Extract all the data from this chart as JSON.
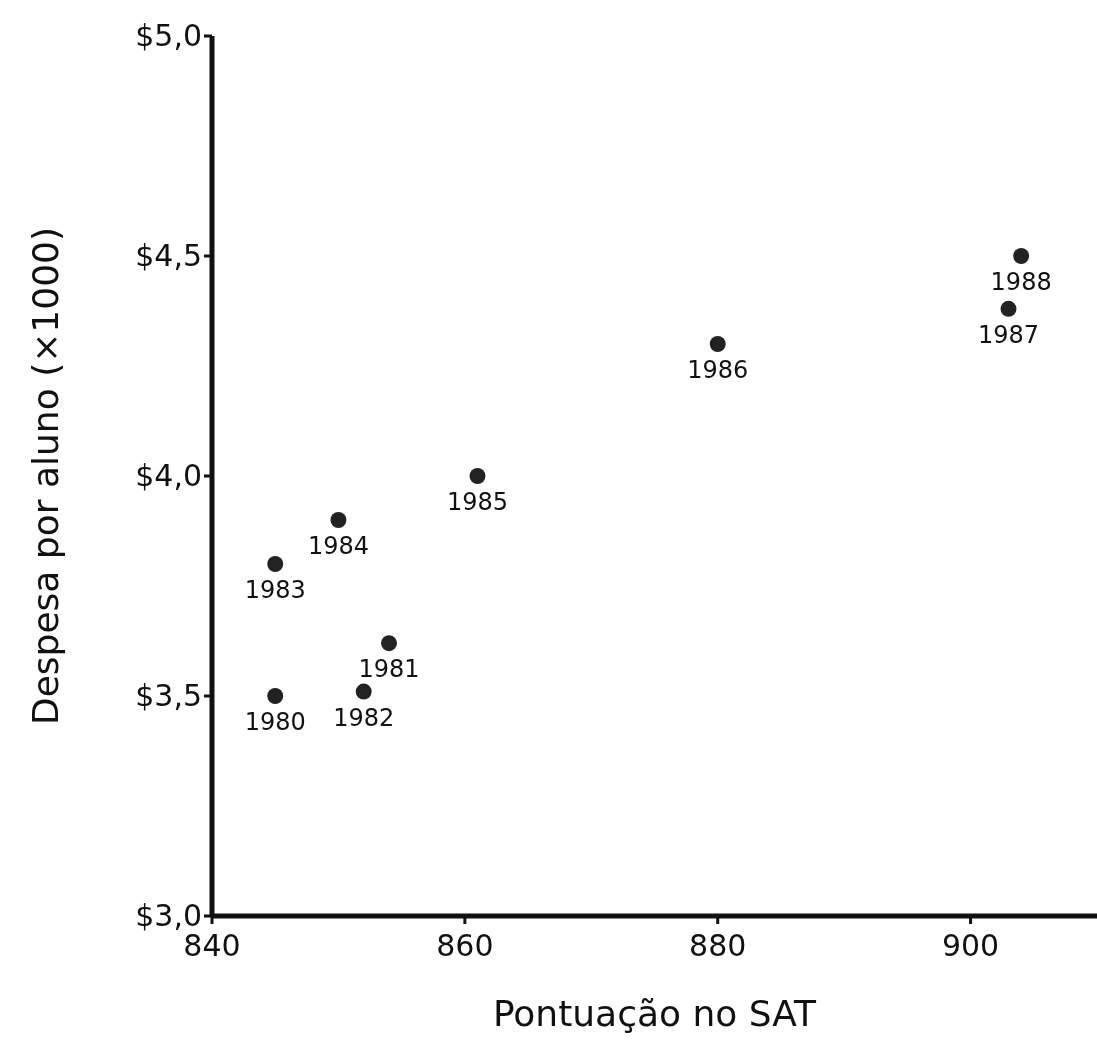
{
  "chart_data": {
    "type": "scatter",
    "xlabel": "Pontuação no SAT",
    "ylabel": "Despesa por aluno (×1000)",
    "xlim": [
      840,
      910
    ],
    "xticks": [
      840,
      860,
      880,
      900
    ],
    "ylim": [
      3,
      5
    ],
    "yticks": [
      {
        "value": 3,
        "label": "$3,0"
      },
      {
        "value": 3.5,
        "label": "$3,5"
      },
      {
        "value": 4,
        "label": "$4,0"
      },
      {
        "value": 4.5,
        "label": "$4,5"
      },
      {
        "value": 5,
        "label": "$5,0"
      }
    ],
    "series": [
      {
        "color": "#222222",
        "x": [
          845,
          854,
          852,
          845,
          850,
          861,
          880,
          903,
          904
        ],
        "values": [
          3.5,
          3.62,
          3.51,
          3.8,
          3.9,
          4.0,
          4.3,
          4.38,
          4.5
        ]
      }
    ],
    "marker": "circle",
    "annotations": [
      {
        "text": "1980",
        "x": 845,
        "y": 3.5
      },
      {
        "text": "1981",
        "x": 854,
        "y": 3.62
      },
      {
        "text": "1982",
        "x": 852,
        "y": 3.51
      },
      {
        "text": "1983",
        "x": 845,
        "y": 3.8
      },
      {
        "text": "1984",
        "x": 850,
        "y": 3.9
      },
      {
        "text": "1985",
        "x": 861,
        "y": 4.0
      },
      {
        "text": "1986",
        "x": 880,
        "y": 4.3
      },
      {
        "text": "1987",
        "x": 903,
        "y": 4.38
      },
      {
        "text": "1988",
        "x": 904,
        "y": 4.5
      }
    ]
  }
}
